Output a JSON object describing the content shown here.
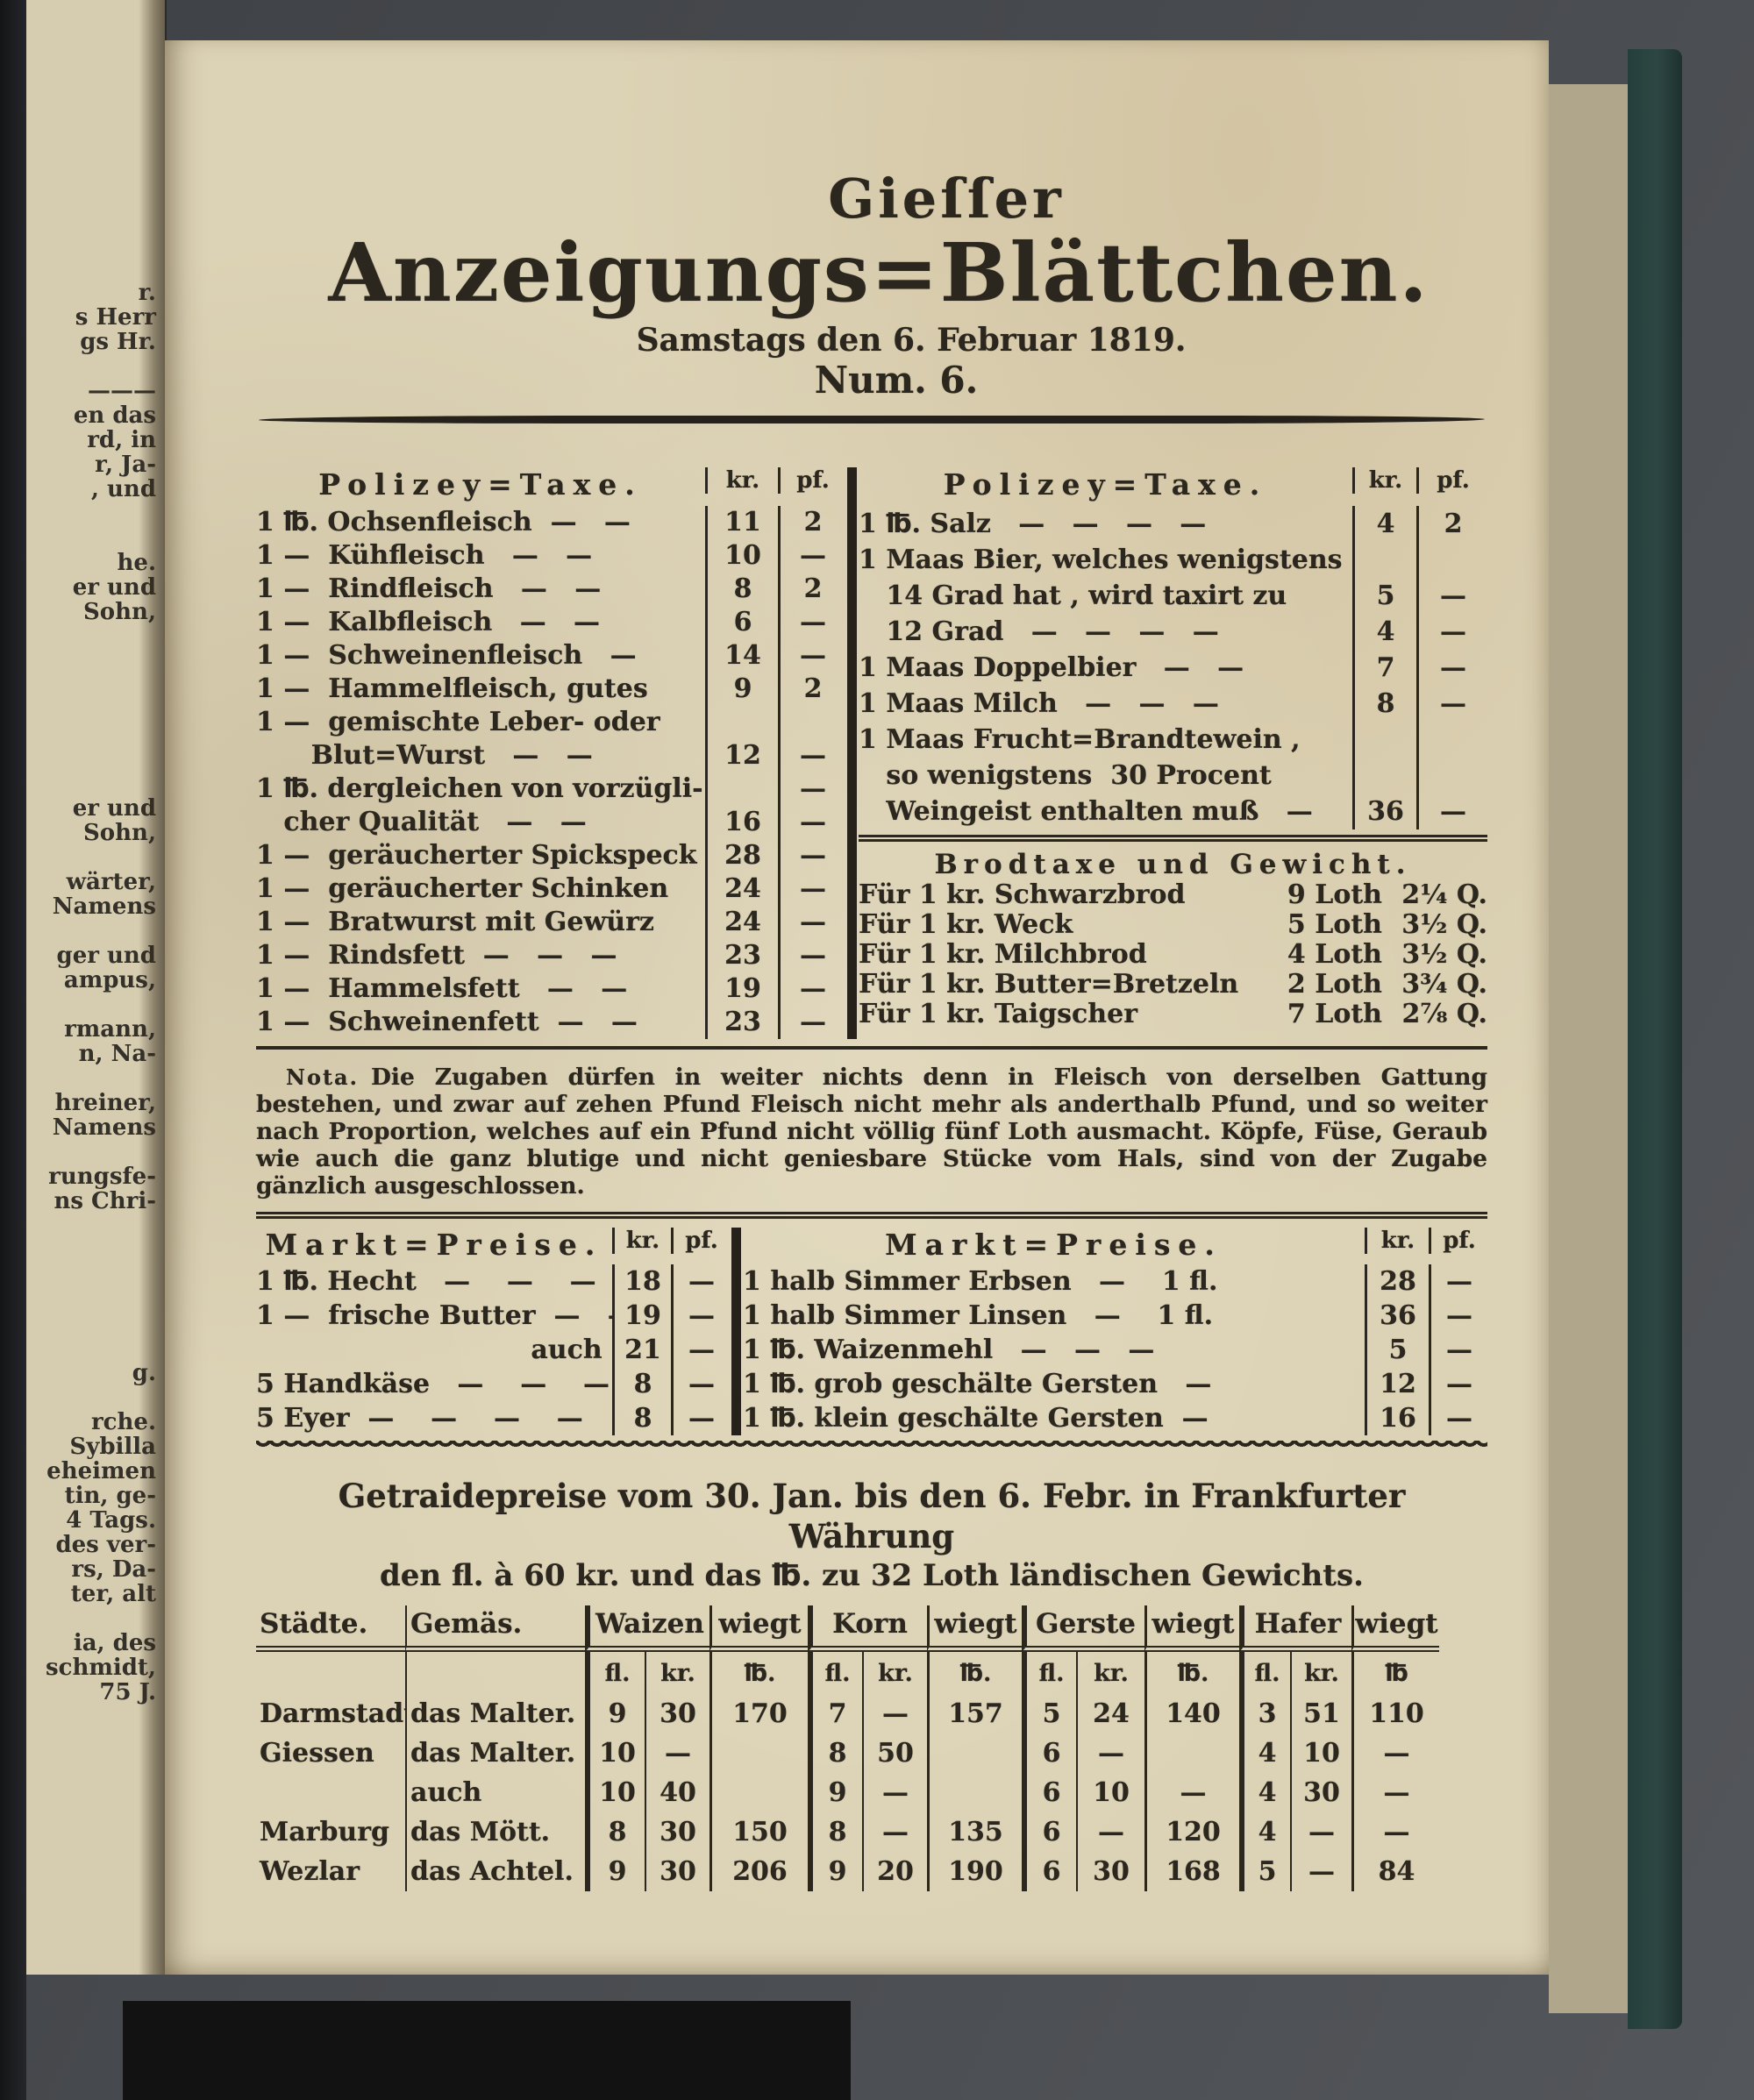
{
  "scan": {
    "left_page_fragments": [
      "r.",
      "s Herr",
      "gs Hr.",
      "",
      "———",
      "en das",
      "rd, in",
      "r, Ja-",
      ", und",
      "",
      "",
      "he.",
      "er und",
      "Sohn,",
      "",
      "",
      "",
      "",
      "",
      "",
      "",
      "er und",
      "Sohn,",
      "",
      "wärter,",
      "Namens",
      "",
      "ger und",
      "ampus,",
      "",
      "rmann,",
      "n, Na-",
      "",
      "hreiner,",
      "Namens",
      "",
      "rungsfe-",
      "ns Chri-",
      "",
      "",
      "",
      "",
      "",
      "",
      "g.",
      "",
      "rche.",
      "Sybilla",
      "eheimen",
      "tin, ge-",
      "4 Tags.",
      "des ver-",
      "rs, Da-",
      "ter, alt",
      "",
      "ia, des",
      "schmidt,",
      "75 J."
    ]
  },
  "masthead": {
    "line1": "Gieſſer",
    "line2": "Anzeigungs=Blättchen.",
    "dateline": "Samstags den 6. Februar 1819.",
    "number": "Num. 6."
  },
  "police_tax_left": {
    "title": "Polizey=Taxe.",
    "col_kr": "kr.",
    "col_pf": "pf.",
    "rows": [
      [
        "1 ℔. Ochsenfleisch  —   —",
        "11",
        "2"
      ],
      [
        "1 —  Kühfleisch   —   —",
        "10",
        "—"
      ],
      [
        "1 —  Rindfleisch   —   —",
        "8",
        "2"
      ],
      [
        "1 —  Kalbfleisch   —   —",
        "6",
        "—"
      ],
      [
        "1 —  Schweinenfleisch   —",
        "14",
        "—"
      ],
      [
        "1 —  Hammelfleisch, gutes",
        "9",
        "2"
      ],
      [
        "1 —  gemischte Leber- oder",
        "",
        ""
      ],
      [
        "      Blut=Wurst   —   —",
        "12",
        "—"
      ],
      [
        "1 ℔. dergleichen von vorzügli-",
        "",
        "—"
      ],
      [
        "   cher Qualität   —   —",
        "16",
        "—"
      ],
      [
        "1 —  geräucherter Spickspeck",
        "28",
        "—"
      ],
      [
        "1 —  geräucherter Schinken",
        "24",
        "—"
      ],
      [
        "1 —  Bratwurst mit Gewürz",
        "24",
        "—"
      ],
      [
        "1 —  Rindsfett  —   —   —",
        "23",
        "—"
      ],
      [
        "1 —  Hammelsfett   —   —",
        "19",
        "—"
      ],
      [
        "1 —  Schweinenfett  —   —",
        "23",
        "—"
      ]
    ]
  },
  "police_tax_right": {
    "title": "Polizey=Taxe.",
    "col_kr": "kr.",
    "col_pf": "pf.",
    "rows": [
      [
        "1 ℔. Salz   —   —   —   —",
        "4",
        "2"
      ],
      [
        "1 Maas Bier, welches wenigstens",
        "",
        ""
      ],
      [
        "   14 Grad hat , wird taxirt zu",
        "5",
        "—"
      ],
      [
        "   12 Grad   —   —   —   —",
        "4",
        "—"
      ],
      [
        "1 Maas Doppelbier   —   —",
        "7",
        "—"
      ],
      [
        "1 Maas Milch   —   —   —",
        "8",
        "—"
      ],
      [
        "1 Maas Frucht=Brandtewein ,",
        "",
        ""
      ],
      [
        "   so wenigstens  30 Procent",
        "",
        ""
      ],
      [
        "   Weingeist enthalten muß   —",
        "36",
        "—"
      ]
    ]
  },
  "bread_tax": {
    "title": "Brodtaxe und Gewicht.",
    "rows": [
      [
        "Für 1 kr. Schwarzbrod",
        "9 Loth",
        "2¼ Q."
      ],
      [
        "Für 1 kr. Weck",
        "5 Loth",
        "3½ Q."
      ],
      [
        "Für 1 kr. Milchbrod",
        "4 Loth",
        "3½ Q."
      ],
      [
        "Für 1 kr. Butter=Bretzeln",
        "2 Loth",
        "3¾ Q."
      ],
      [
        "Für 1 kr. Taigscher",
        "7 Loth",
        "2⅞ Q."
      ]
    ]
  },
  "nota": {
    "label": "Nota.",
    "text": "Die Zugaben dürfen in weiter nichts denn in Fleisch von derselben Gattung bestehen, und zwar auf zehen Pfund Fleisch nicht mehr als anderthalb Pfund, und so weiter nach Proportion, welches auf ein Pfund nicht völlig fünf Loth ausmacht. Köpfe, Füse, Geraub wie auch die ganz blutige und nicht geniesbare Stücke vom Hals, sind von der Zugabe gänzlich ausgeschlossen."
  },
  "market_left": {
    "title": "Markt=Preise.",
    "col_kr": "kr.",
    "col_pf": "pf.",
    "rows": [
      [
        "1 ℔. Hecht   —    —    —",
        "18",
        "—"
      ],
      [
        "1 —  frische Butter  —   —",
        "19",
        "—"
      ],
      [
        "                              auch",
        "21",
        "—"
      ],
      [
        "5 Handkäse   —    —    —",
        "8",
        "—"
      ],
      [
        "5 Eyer  —    —    —    —",
        "8",
        "—"
      ]
    ]
  },
  "market_right": {
    "title": "Markt=Preise.",
    "col_kr": "kr.",
    "col_pf": "pf.",
    "rows": [
      [
        "1 halb Simmer Erbsen   —    1 fl.",
        "28",
        "—"
      ],
      [
        "1 halb Simmer Linsen   —    1 fl.",
        "36",
        "—"
      ],
      [
        "1 ℔. Waizenmehl   —   —   —",
        "5",
        "—"
      ],
      [
        "1 ℔. grob geschälte Gersten   —",
        "12",
        "—"
      ],
      [
        "1 ℔. klein geschälte Gersten  —",
        "16",
        "—"
      ]
    ]
  },
  "grain": {
    "heading_line1": "Getraidepreise vom 30. Jan. bis den 6. Febr. in Frankfurter Währung",
    "heading_line2": "den fl. à 60 kr. und das ℔. zu 32 Loth ländischen Gewichts.",
    "col_staedte": "Städte.",
    "col_gemaes": "Gemäs.",
    "col_waizen": "Waizen",
    "col_korn": "Korn",
    "col_gerste": "Gerste",
    "col_hafer": "Hafer",
    "col_wiegt": "wiegt",
    "unit_fl": "fl.",
    "unit_kr": "kr.",
    "unit_pfund": "℔.",
    "unit_pfund_last": "℔",
    "rows": [
      [
        "Darmstadt",
        "das Malter.",
        "9",
        "30",
        "170",
        "7",
        "—",
        "157",
        "5",
        "24",
        "140",
        "3",
        "51",
        "110"
      ],
      [
        "Giessen",
        "das Malter.",
        "10",
        "—",
        "",
        "8",
        "50",
        "",
        "6",
        "—",
        "",
        "4",
        "10",
        "—"
      ],
      [
        "",
        "auch",
        "10",
        "40",
        "",
        "9",
        "—",
        "",
        "6",
        "10",
        "—",
        "4",
        "30",
        "—"
      ],
      [
        "Marburg",
        "das Mött.",
        "8",
        "30",
        "150",
        "8",
        "—",
        "135",
        "6",
        "—",
        "120",
        "4",
        "—",
        "—"
      ],
      [
        "Wezlar",
        "das Achtel.",
        "9",
        "30",
        "206",
        "9",
        "20",
        "190",
        "6",
        "30",
        "168",
        "5",
        "—",
        "84"
      ]
    ]
  }
}
